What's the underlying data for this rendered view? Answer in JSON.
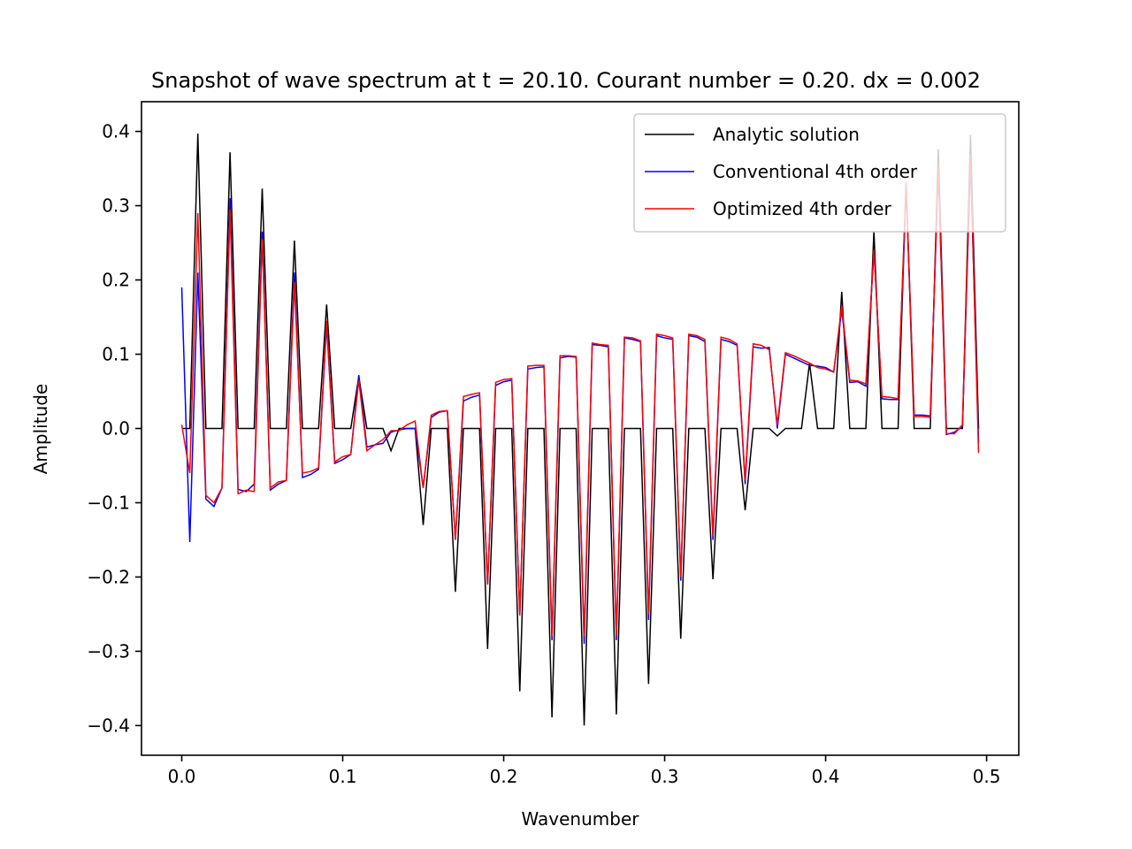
{
  "chart_data": {
    "type": "line",
    "title": "Snapshot of wave spectrum at t = 20.10. Courant number = 0.20. dx = 0.002",
    "xlabel": "Wavenumber",
    "ylabel": "Amplitude",
    "xlim": [
      -0.025,
      0.52
    ],
    "ylim": [
      -0.44,
      0.44
    ],
    "xticks": [
      0.0,
      0.1,
      0.2,
      0.3,
      0.4,
      0.5
    ],
    "xtick_labels": [
      "0.0",
      "0.1",
      "0.2",
      "0.3",
      "0.4",
      "0.5"
    ],
    "yticks": [
      -0.4,
      -0.3,
      -0.2,
      -0.1,
      0.0,
      0.1,
      0.2,
      0.3,
      0.4
    ],
    "ytick_labels": [
      "−0.4",
      "−0.3",
      "−0.2",
      "−0.1",
      "0.0",
      "0.1",
      "0.2",
      "0.3",
      "0.4"
    ],
    "grid": false,
    "legend_position": "top-right",
    "series": [
      {
        "name": "Analytic solution",
        "color": "#000000",
        "x": [
          0.0,
          0.005,
          0.01,
          0.015,
          0.02,
          0.025,
          0.03,
          0.035,
          0.04,
          0.045,
          0.05,
          0.055,
          0.06,
          0.065,
          0.07,
          0.075,
          0.08,
          0.085,
          0.09,
          0.095,
          0.1,
          0.105,
          0.11,
          0.115,
          0.12,
          0.125,
          0.13,
          0.135,
          0.14,
          0.145,
          0.15,
          0.155,
          0.16,
          0.165,
          0.17,
          0.175,
          0.18,
          0.185,
          0.19,
          0.195,
          0.2,
          0.205,
          0.21,
          0.215,
          0.22,
          0.225,
          0.23,
          0.235,
          0.24,
          0.245,
          0.25,
          0.255,
          0.26,
          0.265,
          0.27,
          0.275,
          0.28,
          0.285,
          0.29,
          0.295,
          0.3,
          0.305,
          0.31,
          0.315,
          0.32,
          0.325,
          0.33,
          0.335,
          0.34,
          0.345,
          0.35,
          0.355,
          0.36,
          0.365,
          0.37,
          0.375,
          0.38,
          0.385,
          0.39,
          0.395,
          0.4,
          0.405,
          0.41,
          0.415,
          0.42,
          0.425,
          0.43,
          0.435,
          0.44,
          0.445,
          0.45,
          0.455,
          0.46,
          0.465,
          0.47,
          0.475,
          0.48,
          0.485,
          0.49,
          0.495
        ],
        "y": [
          0.0,
          0.0,
          0.397,
          0.0,
          0.0,
          0.0,
          0.372,
          0.0,
          0.0,
          0.0,
          0.323,
          0.0,
          0.0,
          0.0,
          0.253,
          0.0,
          0.0,
          0.0,
          0.167,
          0.0,
          0.0,
          0.0,
          0.07,
          0.0,
          0.0,
          0.0,
          -0.03,
          0.0,
          0.0,
          0.0,
          -0.13,
          0.0,
          0.0,
          0.0,
          -0.22,
          0.0,
          0.0,
          0.0,
          -0.297,
          0.0,
          0.0,
          0.0,
          -0.354,
          0.0,
          0.0,
          0.0,
          -0.389,
          0.0,
          0.0,
          0.0,
          -0.4,
          0.0,
          0.0,
          0.0,
          -0.385,
          0.0,
          0.0,
          0.0,
          -0.344,
          0.0,
          0.0,
          0.0,
          -0.283,
          0.0,
          0.0,
          0.0,
          -0.203,
          0.0,
          0.0,
          0.0,
          -0.11,
          0.0,
          0.0,
          0.0,
          -0.01,
          0.0,
          0.0,
          0.0,
          0.088,
          0.0,
          0.0,
          0.0,
          0.184,
          0.0,
          0.0,
          0.0,
          0.266,
          0.0,
          0.0,
          0.0,
          0.331,
          0.0,
          0.0,
          0.0,
          0.376,
          0.0,
          0.0,
          0.0,
          0.395,
          0.0
        ]
      },
      {
        "name": "Conventional 4th order",
        "color": "#0000ff",
        "x": [
          0.0,
          0.005,
          0.01,
          0.015,
          0.02,
          0.025,
          0.03,
          0.035,
          0.04,
          0.045,
          0.05,
          0.055,
          0.06,
          0.065,
          0.07,
          0.075,
          0.08,
          0.085,
          0.09,
          0.095,
          0.1,
          0.105,
          0.11,
          0.115,
          0.12,
          0.125,
          0.13,
          0.135,
          0.14,
          0.145,
          0.15,
          0.155,
          0.16,
          0.165,
          0.17,
          0.175,
          0.18,
          0.185,
          0.19,
          0.195,
          0.2,
          0.205,
          0.21,
          0.215,
          0.22,
          0.225,
          0.23,
          0.235,
          0.24,
          0.245,
          0.25,
          0.255,
          0.26,
          0.265,
          0.27,
          0.275,
          0.28,
          0.285,
          0.29,
          0.295,
          0.3,
          0.305,
          0.31,
          0.315,
          0.32,
          0.325,
          0.33,
          0.335,
          0.34,
          0.345,
          0.35,
          0.355,
          0.36,
          0.365,
          0.37,
          0.375,
          0.38,
          0.385,
          0.39,
          0.395,
          0.4,
          0.405,
          0.41,
          0.415,
          0.42,
          0.425,
          0.43,
          0.435,
          0.44,
          0.445,
          0.45,
          0.455,
          0.46,
          0.465,
          0.47,
          0.475,
          0.48,
          0.485,
          0.49,
          0.495
        ],
        "y": [
          0.19,
          -0.153,
          0.21,
          -0.095,
          -0.105,
          -0.08,
          0.31,
          -0.082,
          -0.085,
          -0.075,
          0.265,
          -0.083,
          -0.075,
          -0.07,
          0.21,
          -0.066,
          -0.062,
          -0.055,
          0.14,
          -0.047,
          -0.042,
          -0.035,
          0.072,
          -0.025,
          -0.022,
          -0.02,
          -0.005,
          -0.002,
          0.0,
          0.0,
          -0.08,
          0.015,
          0.022,
          0.024,
          -0.15,
          0.037,
          0.042,
          0.045,
          -0.21,
          0.058,
          0.063,
          0.065,
          -0.25,
          0.08,
          0.082,
          0.083,
          -0.285,
          0.095,
          0.097,
          0.096,
          -0.29,
          0.113,
          0.112,
          0.11,
          -0.285,
          0.122,
          0.12,
          0.117,
          -0.258,
          0.125,
          0.122,
          0.12,
          -0.205,
          0.125,
          0.123,
          0.117,
          -0.15,
          0.12,
          0.117,
          0.112,
          -0.075,
          0.11,
          0.108,
          0.109,
          0.0,
          0.1,
          0.095,
          0.09,
          0.085,
          0.084,
          0.082,
          0.076,
          0.16,
          0.062,
          0.063,
          0.057,
          0.24,
          0.04,
          0.039,
          0.039,
          0.325,
          0.018,
          0.018,
          0.017,
          0.35,
          -0.008,
          -0.005,
          0.003,
          0.36,
          -0.02
        ]
      },
      {
        "name": "Optimized 4th order",
        "color": "#ff0000",
        "x": [
          0.0,
          0.005,
          0.01,
          0.015,
          0.02,
          0.025,
          0.03,
          0.035,
          0.04,
          0.045,
          0.05,
          0.055,
          0.06,
          0.065,
          0.07,
          0.075,
          0.08,
          0.085,
          0.09,
          0.095,
          0.1,
          0.105,
          0.11,
          0.115,
          0.12,
          0.125,
          0.13,
          0.135,
          0.14,
          0.145,
          0.15,
          0.155,
          0.16,
          0.165,
          0.17,
          0.175,
          0.18,
          0.185,
          0.19,
          0.195,
          0.2,
          0.205,
          0.21,
          0.215,
          0.22,
          0.225,
          0.23,
          0.235,
          0.24,
          0.245,
          0.25,
          0.255,
          0.26,
          0.265,
          0.27,
          0.275,
          0.28,
          0.285,
          0.29,
          0.295,
          0.3,
          0.305,
          0.31,
          0.315,
          0.32,
          0.325,
          0.33,
          0.335,
          0.34,
          0.345,
          0.35,
          0.355,
          0.36,
          0.365,
          0.37,
          0.375,
          0.38,
          0.385,
          0.39,
          0.395,
          0.4,
          0.405,
          0.41,
          0.415,
          0.42,
          0.425,
          0.43,
          0.435,
          0.44,
          0.445,
          0.45,
          0.455,
          0.46,
          0.465,
          0.47,
          0.475,
          0.48,
          0.485,
          0.49,
          0.495
        ],
        "y": [
          0.005,
          -0.06,
          0.29,
          -0.09,
          -0.1,
          -0.08,
          0.295,
          -0.088,
          -0.083,
          -0.085,
          0.255,
          -0.08,
          -0.072,
          -0.07,
          0.197,
          -0.06,
          -0.058,
          -0.053,
          0.145,
          -0.045,
          -0.038,
          -0.035,
          0.065,
          -0.03,
          -0.022,
          -0.015,
          -0.003,
          -0.003,
          0.005,
          0.01,
          -0.08,
          0.018,
          0.023,
          0.024,
          -0.15,
          0.043,
          0.046,
          0.048,
          -0.21,
          0.062,
          0.066,
          0.067,
          -0.252,
          0.084,
          0.085,
          0.085,
          -0.28,
          0.098,
          0.098,
          0.097,
          -0.28,
          0.115,
          0.113,
          0.112,
          -0.28,
          0.123,
          0.122,
          0.118,
          -0.25,
          0.127,
          0.125,
          0.122,
          -0.2,
          0.127,
          0.125,
          0.12,
          -0.145,
          0.123,
          0.12,
          0.114,
          -0.07,
          0.114,
          0.112,
          0.106,
          0.005,
          0.102,
          0.098,
          0.093,
          0.088,
          0.082,
          0.08,
          0.076,
          0.165,
          0.065,
          0.064,
          0.06,
          0.24,
          0.043,
          0.042,
          0.04,
          0.33,
          0.016,
          0.016,
          0.015,
          0.355,
          -0.007,
          -0.007,
          0.005,
          0.37,
          -0.033
        ]
      }
    ]
  }
}
